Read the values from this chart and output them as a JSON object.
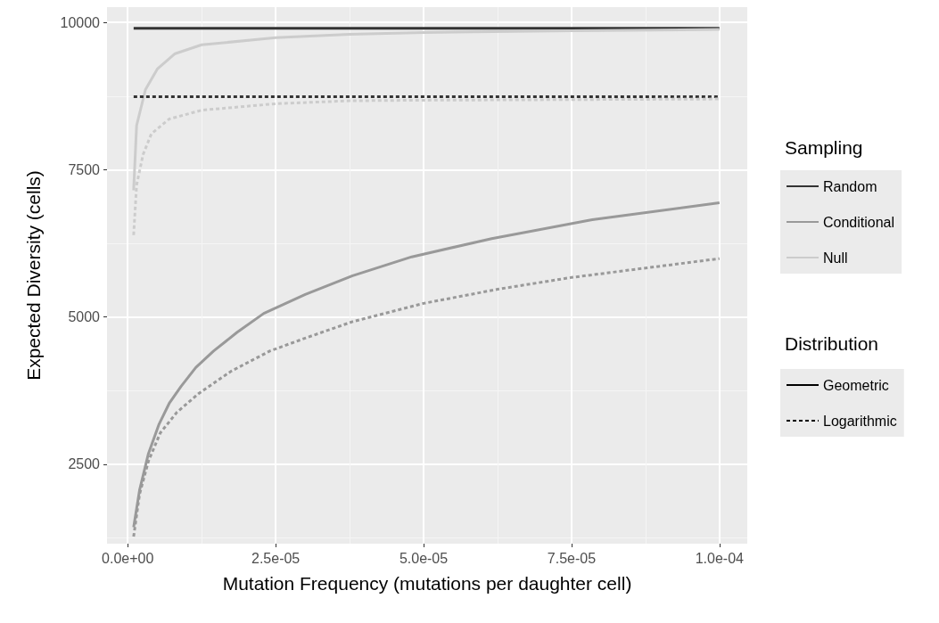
{
  "chart_data": {
    "type": "line",
    "xlabel": "Mutation Frequency (mutations per daughter cell)",
    "ylabel": "Expected Diversity (cells)",
    "legend_title": "Sampling",
    "annotations": [
      "Distribution"
    ],
    "legend": "right",
    "grid": true,
    "marker": "none",
    "xlim": [
      -3.5e-06,
      0.0001047
    ],
    "ylim": [
      1150,
      10260
    ],
    "xticks": [
      {
        "value": 0,
        "label": "0.0e+00"
      },
      {
        "value": 2.5e-05,
        "label": "2.5e-05"
      },
      {
        "value": 5e-05,
        "label": "5.0e-05"
      },
      {
        "value": 7.5e-05,
        "label": "7.5e-05"
      },
      {
        "value": 0.0001,
        "label": "1.0e-04"
      }
    ],
    "yticks": [
      2500,
      5000,
      7500,
      10000
    ],
    "series": [
      {
        "name": "Random",
        "color": "#333333",
        "line_style": "solid",
        "x": [
          1e-06,
          0.0001
        ],
        "values": [
          9900,
          9900
        ]
      },
      {
        "name": "Conditional",
        "color": "#999999",
        "line_style": "solid",
        "x": [
          1e-06,
          2e-06,
          3.5e-06,
          5.3e-06,
          7e-06,
          9e-06,
          1.15e-05,
          1.45e-05,
          1.85e-05,
          2.3e-05,
          3e-05,
          3.8e-05,
          4.8e-05,
          6.15e-05,
          7.85e-05,
          0.0001
        ],
        "values": [
          1430,
          2060,
          2680,
          3180,
          3530,
          3820,
          4140,
          4420,
          4740,
          5060,
          5380,
          5700,
          6020,
          6330,
          6650,
          6940
        ]
      },
      {
        "name": "Null",
        "color": "#cccccc",
        "line_style": "solid",
        "x": [
          1e-06,
          1.5e-06,
          3e-06,
          5e-06,
          8e-06,
          1.25e-05,
          2.5e-05,
          3.75e-05,
          5e-05,
          7.5e-05,
          0.0001
        ],
        "values": [
          7150,
          8250,
          8860,
          9210,
          9470,
          9620,
          9740,
          9800,
          9830,
          9860,
          9880
        ]
      },
      {
        "color": "#333333",
        "line_style": "dashed",
        "x": [
          1e-06,
          0.0001
        ],
        "values": [
          8740,
          8740
        ]
      },
      {
        "color": "#999999",
        "line_style": "dashed",
        "x": [
          1e-06,
          2e-06,
          3.5e-06,
          5.5e-06,
          8.3e-06,
          1.2e-05,
          1.75e-05,
          2.4e-05,
          3e-05,
          3.8e-05,
          5e-05,
          6.25e-05,
          7.5e-05,
          8.75e-05,
          0.0001
        ],
        "values": [
          1270,
          1990,
          2550,
          3030,
          3380,
          3700,
          4080,
          4420,
          4640,
          4920,
          5230,
          5470,
          5670,
          5830,
          5990
        ]
      },
      {
        "color": "#cccccc",
        "line_style": "dashed",
        "x": [
          1e-06,
          1.5e-06,
          2.6e-06,
          4e-06,
          7e-06,
          1.25e-05,
          2.5e-05,
          3.75e-05,
          5e-05,
          0.0001
        ],
        "values": [
          6390,
          7240,
          7760,
          8110,
          8360,
          8510,
          8620,
          8670,
          8680,
          8700
        ]
      },
      {
        "name": "Geometric",
        "color": "#000000",
        "line_style": "solid"
      },
      {
        "name": "Logarithmic",
        "color": "#000000",
        "line_style": "dashed"
      }
    ]
  }
}
